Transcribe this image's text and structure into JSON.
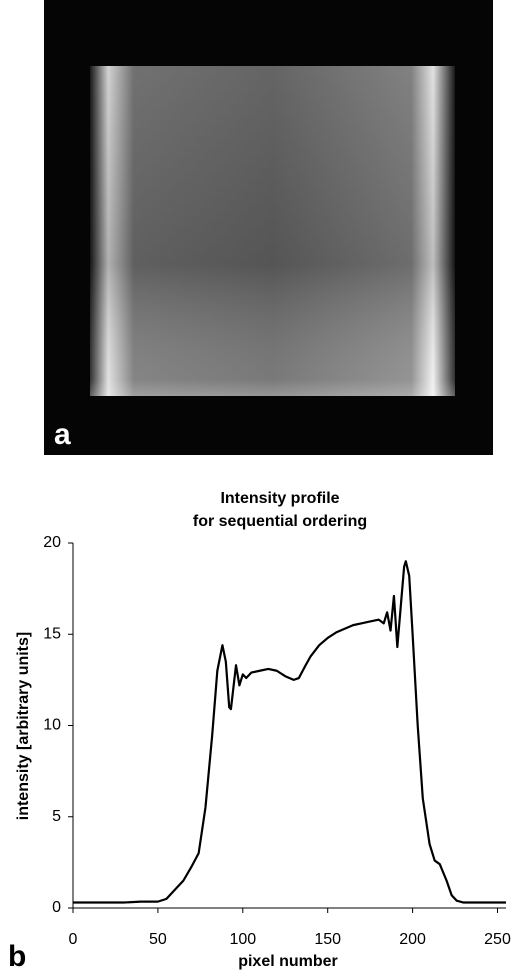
{
  "panel_labels": [
    "a",
    "b"
  ],
  "chart_data": {
    "type": "line",
    "title": [
      "Intensity profile",
      "for sequential ordering"
    ],
    "x_label": "pixel number",
    "y_label": "intensity [arbitrary units]",
    "xlim": [
      0,
      255
    ],
    "ylim": [
      0,
      20
    ],
    "xticks": [
      0,
      50,
      100,
      150,
      200,
      250
    ],
    "yticks": [
      0,
      5,
      10,
      15,
      20
    ],
    "grid": false,
    "series": [
      {
        "color": "#000000",
        "x": [
          0,
          10,
          20,
          30,
          40,
          50,
          55,
          60,
          65,
          70,
          74,
          78,
          82,
          85,
          88,
          90,
          92,
          93,
          95,
          96,
          98,
          100,
          102,
          105,
          110,
          115,
          120,
          125,
          130,
          133,
          137,
          140,
          145,
          150,
          155,
          160,
          165,
          170,
          175,
          180,
          183,
          185,
          187,
          189,
          191,
          193,
          195,
          196,
          198,
          200,
          203,
          206,
          210,
          213,
          216,
          220,
          223,
          226,
          230,
          240,
          250,
          255
        ],
        "values": [
          0.3,
          0.3,
          0.3,
          0.3,
          0.35,
          0.35,
          0.5,
          1.0,
          1.5,
          2.3,
          3.0,
          5.5,
          9.5,
          13,
          14.4,
          13.5,
          11,
          10.9,
          12.5,
          13.3,
          12.2,
          12.8,
          12.6,
          12.9,
          13,
          13.1,
          13,
          12.7,
          12.5,
          12.6,
          13.3,
          13.8,
          14.4,
          14.8,
          15.1,
          15.3,
          15.5,
          15.6,
          15.7,
          15.8,
          15.6,
          16.2,
          15.2,
          17.1,
          14.3,
          16.5,
          18.7,
          19,
          18.2,
          15,
          10,
          6,
          3.5,
          2.6,
          2.4,
          1.5,
          0.7,
          0.4,
          0.3,
          0.3,
          0.3,
          0.3
        ]
      }
    ]
  }
}
